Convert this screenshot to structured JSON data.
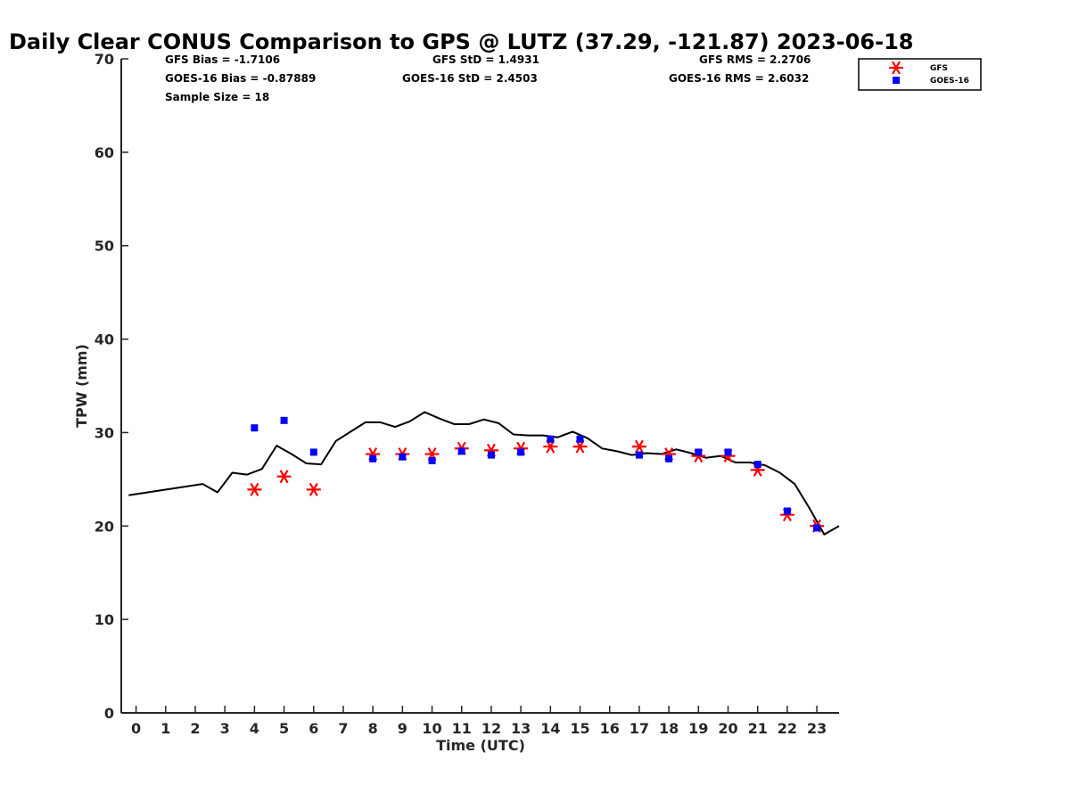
{
  "chart_data": {
    "type": "scatter",
    "title": "Daily Clear CONUS Comparison to GPS @ LUTZ (37.29, -121.87) 2023-06-18",
    "xlabel": "Time (UTC)",
    "ylabel": "TPW (mm)",
    "xlim": [
      -0.5,
      23.75
    ],
    "ylim": [
      0,
      70
    ],
    "x_ticks": [
      0,
      1,
      2,
      3,
      4,
      5,
      6,
      7,
      8,
      9,
      10,
      11,
      12,
      13,
      14,
      15,
      16,
      17,
      18,
      19,
      20,
      21,
      22,
      23
    ],
    "y_ticks": [
      0,
      10,
      20,
      30,
      40,
      50,
      60,
      70
    ],
    "grid": false,
    "legend_position": "top-right, outside plot",
    "stats": {
      "gfs_bias": "GFS Bias = -1.7106",
      "goes_bias": "GOES-16 Bias = -0.87889",
      "sample_size": "Sample Size = 18",
      "gfs_std": "GFS StD = 1.4931",
      "goes_std": "GOES-16 StD = 2.4503",
      "gfs_rms": "GFS RMS = 2.2706",
      "goes_rms": "GOES-16 RMS = 2.6032"
    },
    "gps_line": {
      "color": "#000000",
      "x": [
        -0.25,
        2.25,
        2.75,
        3.25,
        3.75,
        4.25,
        4.75,
        5.25,
        5.75,
        6.25,
        6.75,
        7.25,
        7.75,
        8.25,
        8.75,
        9.25,
        9.75,
        10.25,
        10.75,
        11.25,
        11.75,
        12.25,
        12.75,
        13.25,
        13.75,
        14.25,
        14.75,
        15.25,
        15.75,
        16.25,
        16.75,
        17.25,
        17.75,
        18.25,
        18.75,
        19.25,
        19.75,
        20.25,
        20.75,
        21.25,
        21.75,
        22.25,
        22.75,
        23.25,
        23.75
      ],
      "y": [
        23.3,
        24.5,
        23.6,
        25.7,
        25.5,
        26.1,
        28.6,
        27.7,
        26.7,
        26.6,
        29.1,
        30.1,
        31.1,
        31.1,
        30.6,
        31.2,
        32.2,
        31.5,
        30.9,
        30.9,
        31.4,
        31.0,
        29.8,
        29.7,
        29.7,
        29.5,
        30.1,
        29.4,
        28.3,
        28.0,
        27.6,
        27.8,
        27.7,
        28.2,
        27.8,
        27.3,
        27.5,
        26.8,
        26.8,
        26.5,
        25.7,
        24.5,
        21.9,
        19.1,
        20.0
      ]
    },
    "series": [
      {
        "name": "GFS",
        "marker": "asterisk",
        "color": "#ff0000",
        "x": [
          4,
          5,
          6,
          8,
          9,
          10,
          11,
          12,
          13,
          14,
          15,
          17,
          18,
          19,
          20,
          21,
          22,
          23
        ],
        "y": [
          23.9,
          25.3,
          23.9,
          27.7,
          27.7,
          27.7,
          28.3,
          28.1,
          28.3,
          28.5,
          28.5,
          28.5,
          27.7,
          27.5,
          27.5,
          26.0,
          21.2,
          20.0
        ]
      },
      {
        "name": "GOES-16",
        "marker": "square",
        "color": "#0000ff",
        "x": [
          4,
          5,
          6,
          8,
          9,
          10,
          11,
          12,
          13,
          14,
          15,
          17,
          18,
          19,
          20,
          21,
          22,
          23
        ],
        "y": [
          30.5,
          31.3,
          27.9,
          27.2,
          27.4,
          27.0,
          28.0,
          27.6,
          27.9,
          29.3,
          29.3,
          27.6,
          27.2,
          27.9,
          27.9,
          26.6,
          21.6,
          19.8
        ]
      }
    ]
  }
}
